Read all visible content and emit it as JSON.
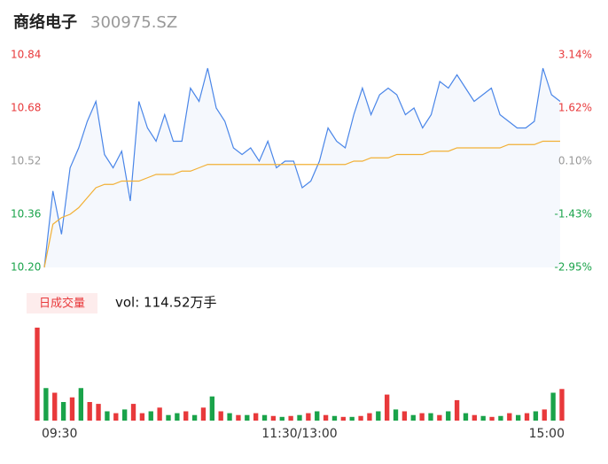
{
  "chart_data": [
    {
      "type": "line",
      "title": "商络电子",
      "subtitle": "300975.SZ",
      "x": [
        0,
        4,
        8,
        12,
        16,
        20,
        24,
        28,
        32,
        36,
        40,
        44,
        48,
        52,
        56,
        60,
        64,
        68,
        72,
        76,
        80,
        84,
        88,
        92,
        96,
        100,
        104,
        108,
        112,
        116,
        120,
        124,
        128,
        132,
        136,
        140,
        144,
        148,
        152,
        156,
        160,
        164,
        168,
        172,
        176,
        180,
        184,
        188,
        192,
        196,
        200,
        204,
        208,
        212,
        216,
        220,
        224,
        228,
        232,
        236,
        240
      ],
      "xlim": [
        0,
        240
      ],
      "series": [
        {
          "color": "#4a86e8",
          "values": [
            10.2,
            10.43,
            10.3,
            10.5,
            10.56,
            10.64,
            10.7,
            10.54,
            10.5,
            10.55,
            10.4,
            10.7,
            10.62,
            10.58,
            10.66,
            10.58,
            10.58,
            10.74,
            10.7,
            10.8,
            10.68,
            10.64,
            10.56,
            10.54,
            10.56,
            10.52,
            10.58,
            10.5,
            10.52,
            10.52,
            10.44,
            10.46,
            10.52,
            10.62,
            10.58,
            10.56,
            10.66,
            10.74,
            10.66,
            10.72,
            10.74,
            10.72,
            10.66,
            10.68,
            10.62,
            10.66,
            10.76,
            10.74,
            10.78,
            10.74,
            10.7,
            10.72,
            10.74,
            10.66,
            10.64,
            10.62,
            10.62,
            10.64,
            10.8,
            10.72,
            10.7
          ]
        },
        {
          "color": "#f2b035",
          "values": [
            10.2,
            10.33,
            10.35,
            10.36,
            10.38,
            10.41,
            10.44,
            10.45,
            10.45,
            10.46,
            10.46,
            10.46,
            10.47,
            10.48,
            10.48,
            10.48,
            10.49,
            10.49,
            10.5,
            10.51,
            10.51,
            10.51,
            10.51,
            10.51,
            10.51,
            10.51,
            10.51,
            10.51,
            10.51,
            10.51,
            10.51,
            10.51,
            10.51,
            10.51,
            10.51,
            10.51,
            10.52,
            10.52,
            10.53,
            10.53,
            10.53,
            10.54,
            10.54,
            10.54,
            10.54,
            10.55,
            10.55,
            10.55,
            10.56,
            10.56,
            10.56,
            10.56,
            10.56,
            10.56,
            10.57,
            10.57,
            10.57,
            10.57,
            10.58,
            10.58,
            10.58
          ]
        }
      ],
      "ylim": [
        10.2,
        10.84
      ],
      "yticks": [
        {
          "value": 10.2,
          "label": "10.20"
        },
        10.36,
        10.52,
        10.68,
        10.84
      ],
      "y2lim": [
        -2.95,
        3.14
      ],
      "y2ticks": [
        {
          "value": -2.95,
          "label": "-2.95%"
        },
        {
          "value": -1.43,
          "label": "-1.43%"
        },
        {
          "value": 0.1,
          "label": "0.10%"
        },
        {
          "value": 1.62,
          "label": "1.62%"
        },
        {
          "value": 3.14,
          "label": "3.14%"
        }
      ],
      "up_color": "#e8393b",
      "down_color": "#1aa34a",
      "flat_color": "#999999",
      "fill": "#f5f8fd"
    },
    {
      "type": "bar",
      "title": "日成交量",
      "annotation": "vol: 114.52万手",
      "x": [
        0,
        4,
        8,
        12,
        16,
        20,
        24,
        28,
        32,
        36,
        40,
        44,
        48,
        52,
        56,
        60,
        64,
        68,
        72,
        76,
        80,
        84,
        88,
        92,
        96,
        100,
        104,
        108,
        112,
        116,
        120,
        124,
        128,
        132,
        136,
        140,
        144,
        148,
        152,
        156,
        160,
        164,
        168,
        172,
        176,
        180,
        184,
        188,
        192,
        196,
        200,
        204,
        208,
        212,
        216,
        220,
        224,
        228,
        232,
        236,
        240
      ],
      "xlim": [
        0,
        240
      ],
      "values": [
        100,
        35,
        30,
        20,
        25,
        35,
        20,
        18,
        10,
        8,
        12,
        18,
        8,
        10,
        14,
        6,
        8,
        10,
        6,
        14,
        26,
        10,
        8,
        6,
        6,
        8,
        6,
        5,
        4,
        5,
        6,
        8,
        10,
        6,
        5,
        4,
        4,
        5,
        8,
        10,
        28,
        12,
        10,
        6,
        8,
        8,
        6,
        10,
        22,
        8,
        6,
        5,
        4,
        5,
        8,
        6,
        8,
        10,
        12,
        30,
        34
      ],
      "rising": [
        true,
        false,
        true,
        false,
        true,
        false,
        true,
        true,
        false,
        true,
        false,
        true,
        true,
        false,
        true,
        false,
        false,
        true,
        false,
        true,
        false,
        true,
        false,
        true,
        false,
        true,
        false,
        true,
        false,
        true,
        false,
        true,
        false,
        true,
        false,
        true,
        false,
        true,
        true,
        false,
        true,
        false,
        true,
        false,
        true,
        false,
        true,
        false,
        true,
        false,
        true,
        false,
        true,
        false,
        true,
        false,
        true,
        false,
        true,
        false,
        true
      ],
      "xticks": [
        {
          "value": 0,
          "label": "09:30"
        },
        {
          "value": 120,
          "label": "11:30/13:00"
        },
        {
          "value": 240,
          "label": "15:00"
        }
      ],
      "up_color": "#e8393b",
      "down_color": "#1aa34a",
      "badge_color": "#fdecec"
    }
  ]
}
